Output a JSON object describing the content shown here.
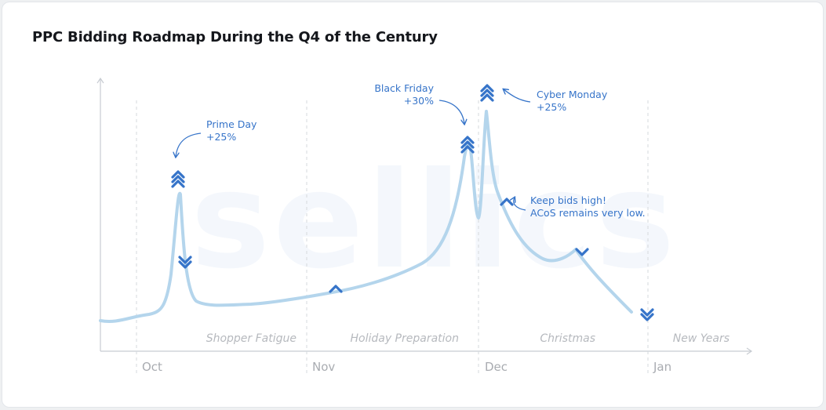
{
  "title": "PPC Bidding Roadmap During the Q4 of the Century",
  "watermark": "sellics",
  "colors": {
    "line": "#b4d5ec",
    "marker": "#3674c9",
    "annotation": "#3674c9",
    "axis": "#c8ccd2",
    "text_muted": "#b6b9be"
  },
  "chart_data": {
    "type": "line",
    "title": "PPC Bidding Roadmap During the Q4 of the Century",
    "x_ticks": [
      "Oct",
      "Nov",
      "Dec",
      "Jan"
    ],
    "phases": [
      "Shopper Fatigue",
      "Holiday Preparation",
      "Christmas",
      "New Years"
    ],
    "markers": [
      {
        "name": "prime-day-up",
        "direction": "up",
        "strength": 3
      },
      {
        "name": "after-prime-day-down",
        "direction": "down",
        "strength": 2
      },
      {
        "name": "holiday-prep-up",
        "direction": "up",
        "strength": 1
      },
      {
        "name": "black-friday-up",
        "direction": "up",
        "strength": 3
      },
      {
        "name": "cyber-monday-up",
        "direction": "up",
        "strength": 3
      },
      {
        "name": "keep-bids-high-up",
        "direction": "up",
        "strength": 1
      },
      {
        "name": "christmas-down",
        "direction": "down",
        "strength": 1
      },
      {
        "name": "new-years-down",
        "direction": "down",
        "strength": 2
      }
    ],
    "annotations": [
      {
        "lines": [
          "Prime Day",
          "+25%"
        ]
      },
      {
        "lines": [
          "Black Friday",
          "+30%"
        ]
      },
      {
        "lines": [
          "Cyber Monday",
          "+25%"
        ]
      },
      {
        "lines": [
          "Keep bids high!",
          "ACoS remains very low."
        ]
      }
    ]
  }
}
